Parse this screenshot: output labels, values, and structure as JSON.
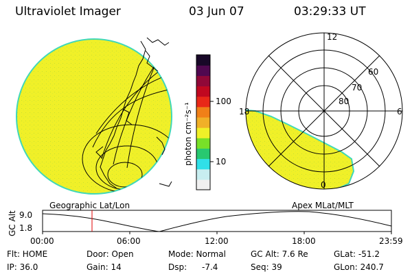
{
  "header": {
    "instrument": "Ultraviolet Imager",
    "date": "03 Jun 07",
    "time": "03:29:33 UT"
  },
  "colorbar": {
    "unit_label": "photon cm⁻²s⁻¹",
    "ticks": [
      "100",
      "10"
    ],
    "colors": [
      "#f0f0f0",
      "#c8eef0",
      "#30e0e8",
      "#28c870",
      "#78e028",
      "#f0f028",
      "#f0b028",
      "#f08018",
      "#e82818",
      "#c00820",
      "#900838",
      "#500850",
      "#180828"
    ]
  },
  "geo_panel": {
    "label": "Geographic Lat/Lon",
    "fill_color": "#f0f028",
    "edge_color": "#40d8b8"
  },
  "polar_panel": {
    "label": "Apex  MLat/MLT",
    "mlt_labels": {
      "top": "12",
      "left": "18",
      "right": "6",
      "bottom": "0"
    },
    "lat_labels": [
      "60",
      "70",
      "80"
    ]
  },
  "altitude_plot": {
    "ylabel": "GC Alt",
    "yticks": [
      "9.0",
      "1.8"
    ],
    "xticks": [
      "00:00",
      "06:00",
      "12:00",
      "18:00",
      "23:59"
    ],
    "marker_color": "#e00000"
  },
  "footer": {
    "filter": "Flt: HOME",
    "door": "Door: Open",
    "mode": "Mode: Normal",
    "gc_alt": "GC Alt: 7.6 Re",
    "glat": "GLat: -51.2",
    "ip": "IP: 36.0",
    "gain": "Gain: 14",
    "dsp_label": "Dsp:",
    "dsp_value": "-7.4",
    "seq": "Seq: 39",
    "glon": "GLon: 240.7"
  }
}
